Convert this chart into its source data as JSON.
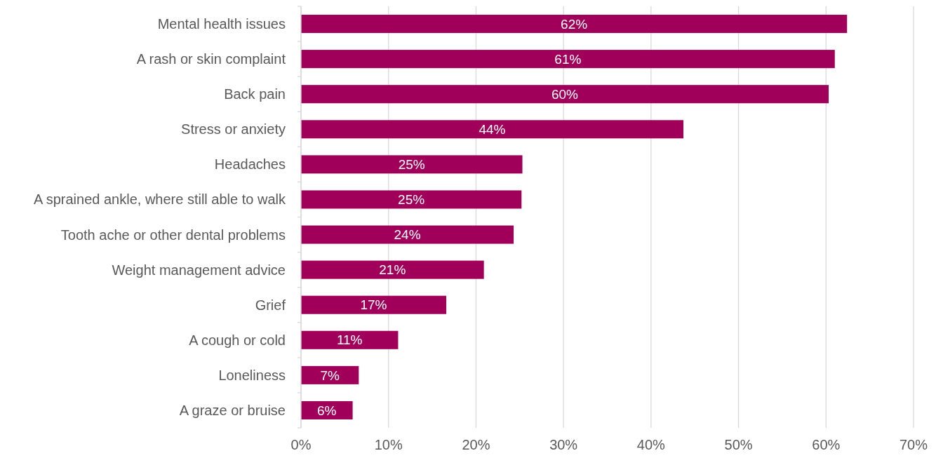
{
  "chart_data": {
    "type": "bar",
    "orientation": "horizontal",
    "categories": [
      "Mental health issues",
      "A rash or skin complaint",
      "Back pain",
      "Stress or anxiety",
      "Headaches",
      "A sprained ankle, where still able to walk",
      "Tooth ache or other dental problems",
      "Weight management advice",
      "Grief",
      "A cough or cold",
      "Loneliness",
      "A graze or bruise"
    ],
    "values": [
      62.4,
      61.0,
      60.3,
      43.7,
      25.3,
      25.2,
      24.3,
      20.9,
      16.6,
      11.1,
      6.6,
      5.9
    ],
    "value_labels": [
      "62%",
      "61%",
      "60%",
      "44%",
      "25%",
      "25%",
      "24%",
      "21%",
      "17%",
      "11%",
      "7%",
      "6%"
    ],
    "color": "#a0005a",
    "xlim": [
      0,
      70
    ],
    "xticks": [
      {
        "value": 0,
        "label": "0%"
      },
      {
        "value": 10,
        "label": "10%"
      },
      {
        "value": 20,
        "label": "20%"
      },
      {
        "value": 30,
        "label": "30%"
      },
      {
        "value": 40,
        "label": "40%"
      },
      {
        "value": 50,
        "label": "50%"
      },
      {
        "value": 60,
        "label": "60%"
      },
      {
        "value": 70,
        "label": "70%"
      }
    ],
    "grid": "x"
  }
}
